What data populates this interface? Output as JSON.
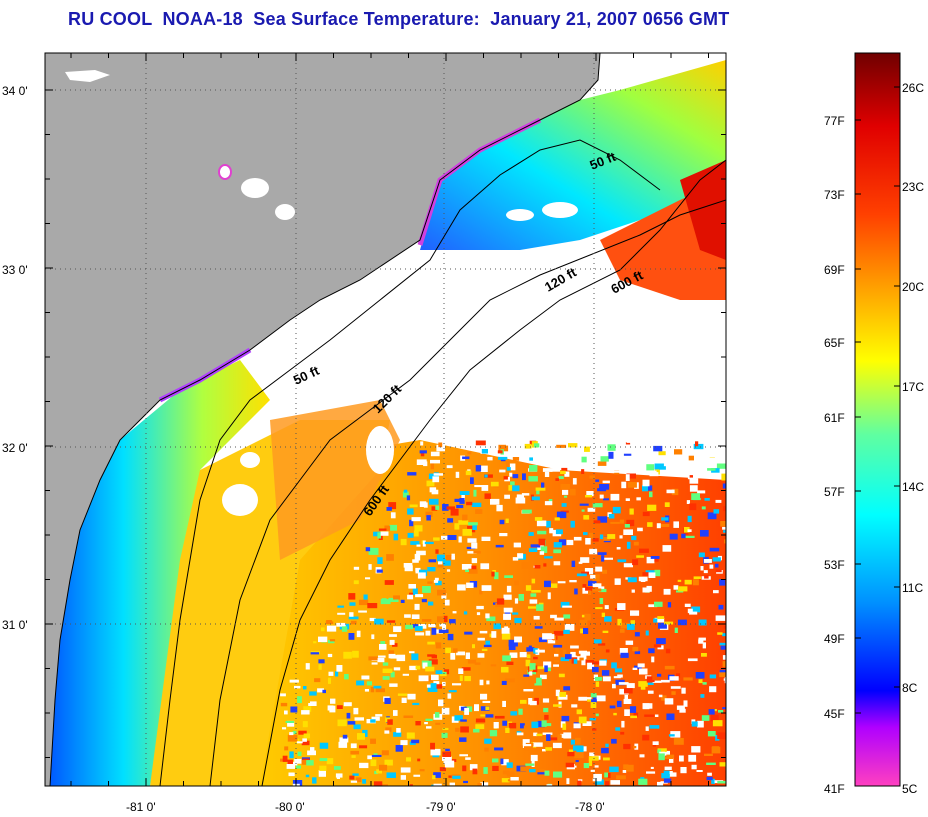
{
  "title": "RU COOL  NOAA-18  Sea Surface Temperature:  January 21, 2007 0656 GMT",
  "map": {
    "lat_ticks": [
      {
        "label": "34 0'",
        "value": 34.0
      },
      {
        "label": "33 0'",
        "value": 33.0
      },
      {
        "label": "32 0'",
        "value": 32.0
      },
      {
        "label": "31 0'",
        "value": 31.0
      }
    ],
    "lon_ticks": [
      {
        "label": "-81 0'",
        "value": -81.0
      },
      {
        "label": "-80 0'",
        "value": -80.0
      },
      {
        "label": "-79 0'",
        "value": -79.0
      },
      {
        "label": "-78 0'",
        "value": -78.0
      }
    ],
    "contour_labels": [
      {
        "text": "50 ft",
        "isobath": 50
      },
      {
        "text": "50 ft",
        "isobath": 50
      },
      {
        "text": "120 ft",
        "isobath": 120
      },
      {
        "text": "120 ft",
        "isobath": 120
      },
      {
        "text": "600 ft",
        "isobath": 600
      },
      {
        "text": "600 ft",
        "isobath": 600
      }
    ],
    "colors": {
      "land": "#a9a9a9",
      "no_data": "#ffffff",
      "coastline": "#000000"
    }
  },
  "colorbar": {
    "fahrenheit": [
      "77F",
      "73F",
      "69F",
      "65F",
      "61F",
      "57F",
      "53F",
      "49F",
      "45F",
      "41F"
    ],
    "celsius": [
      "26C",
      "23C",
      "20C",
      "17C",
      "14C",
      "11C",
      "8C",
      "5C"
    ],
    "colors": [
      "#ff40c0",
      "#b000ff",
      "#0000ff",
      "#0090ff",
      "#00ffff",
      "#60ffa0",
      "#ffff00",
      "#ffa000",
      "#ff4000",
      "#e00000",
      "#700000"
    ]
  }
}
